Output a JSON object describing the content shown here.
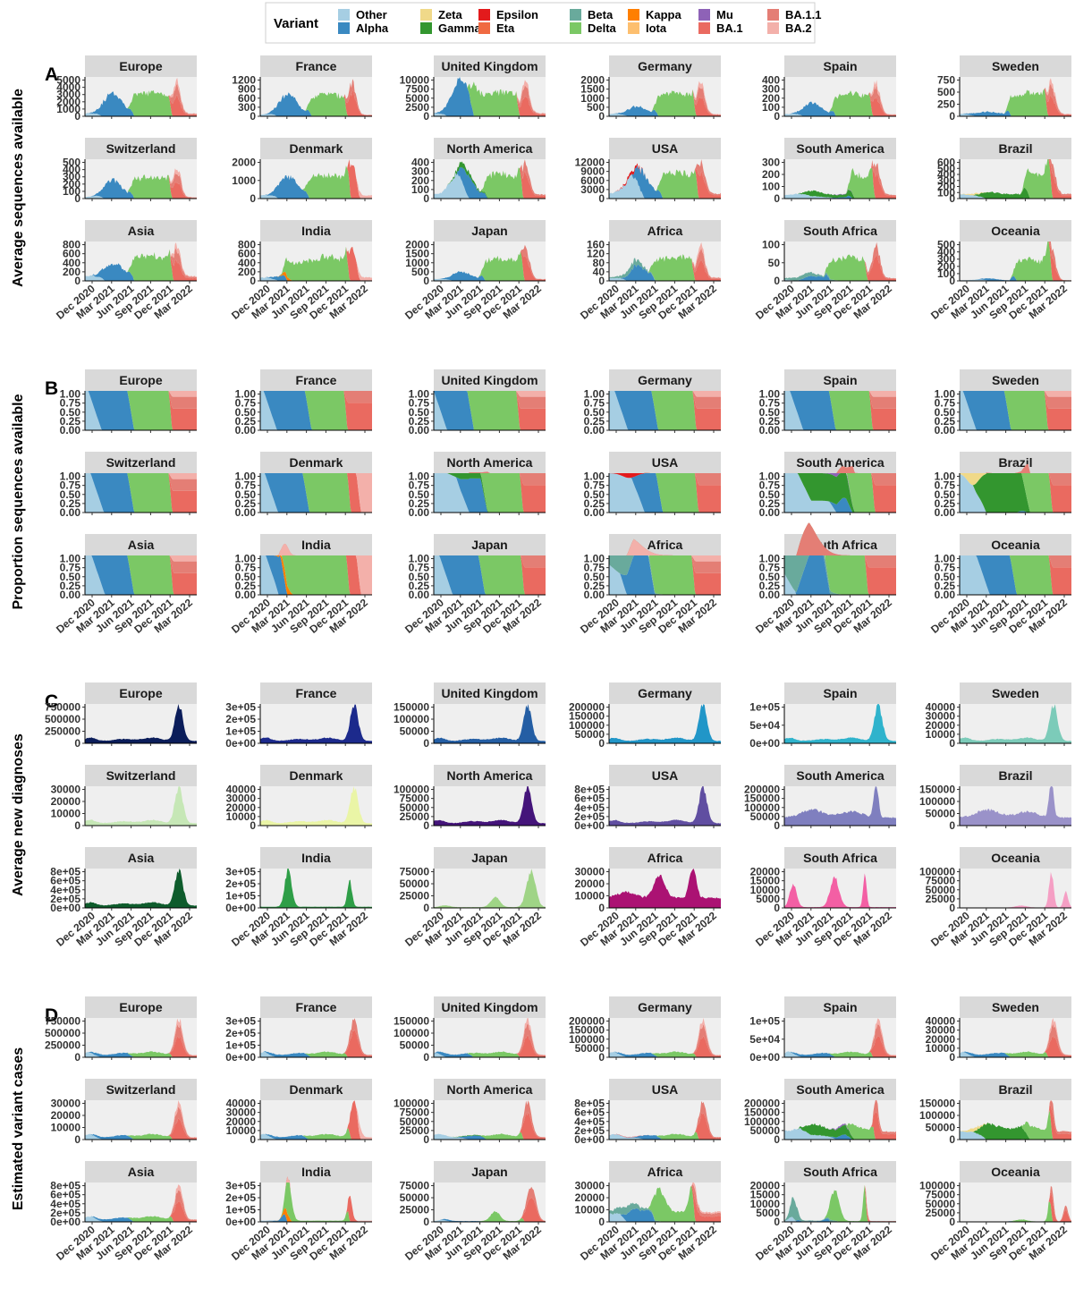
{
  "legend": {
    "title": "Variant",
    "items": [
      {
        "name": "Other",
        "color": "#a6cee3"
      },
      {
        "name": "Alpha",
        "color": "#3a89c1"
      },
      {
        "name": "Zeta",
        "color": "#f0d989"
      },
      {
        "name": "Gamma",
        "color": "#33962f"
      },
      {
        "name": "Epsilon",
        "color": "#e31a1c"
      },
      {
        "name": "Eta",
        "color": "#f06a42"
      },
      {
        "name": "Beta",
        "color": "#69aa9c"
      },
      {
        "name": "Delta",
        "color": "#7bc865"
      },
      {
        "name": "Kappa",
        "color": "#ff7f00"
      },
      {
        "name": "Iota",
        "color": "#fdbf6f"
      },
      {
        "name": "Mu",
        "color": "#8e62b7"
      },
      {
        "name": "BA.1",
        "color": "#ea6a60"
      },
      {
        "name": "BA.1.1",
        "color": "#e47e75"
      },
      {
        "name": "BA.2",
        "color": "#f3b0aa"
      }
    ]
  },
  "colors": {
    "strip": "#d9d9d9",
    "panel_bg": "#efefef",
    "axis": "#000000"
  },
  "x_ticks": [
    "Dec 2020",
    "Mar 2021",
    "Jun 2021",
    "Sep 2021",
    "Dec 2021",
    "Mar 2022"
  ],
  "regions": [
    "Europe",
    "France",
    "United Kingdom",
    "Germany",
    "Spain",
    "Sweden",
    "Switzerland",
    "Denmark",
    "North America",
    "USA",
    "South America",
    "Brazil",
    "Asia",
    "India",
    "Japan",
    "Africa",
    "South Africa",
    "Oceania"
  ],
  "chart_data": [
    {
      "label": "A",
      "ylabel": "Average sequences available",
      "type": "area",
      "mode": "variant",
      "yticks": [
        [
          "0",
          "1000",
          "2000",
          "3000",
          "4000",
          "5000"
        ],
        [
          "0",
          "300",
          "600",
          "900",
          "1200"
        ],
        [
          "0",
          "2500",
          "5000",
          "7500",
          "10000"
        ],
        [
          "0",
          "500",
          "1000",
          "1500",
          "2000"
        ],
        [
          "0",
          "100",
          "200",
          "300",
          "400"
        ],
        [
          "0",
          "250",
          "500",
          "750"
        ],
        [
          "0",
          "100",
          "200",
          "300",
          "400",
          "500"
        ],
        [
          "0",
          "1000",
          "2000"
        ],
        [
          "0",
          "100",
          "200",
          "300",
          "400"
        ],
        [
          "0",
          "3000",
          "6000",
          "9000",
          "12000"
        ],
        [
          "0",
          "100",
          "200",
          "300"
        ],
        [
          "0",
          "100",
          "200",
          "300",
          "400",
          "500",
          "600"
        ],
        [
          "0",
          "200",
          "400",
          "600",
          "800"
        ],
        [
          "0",
          "200",
          "400",
          "600",
          "800"
        ],
        [
          "0",
          "500",
          "1000",
          "1500",
          "2000"
        ],
        [
          "0",
          "40",
          "80",
          "120",
          "160"
        ],
        [
          "0",
          "50",
          "100"
        ],
        [
          "0",
          "100",
          "200",
          "300",
          "400",
          "500"
        ]
      ]
    },
    {
      "label": "B",
      "ylabel": "Proportion sequences available",
      "type": "area",
      "mode": "proportion",
      "yticks": [
        "0.00",
        "0.25",
        "0.50",
        "0.75",
        "1.00"
      ]
    },
    {
      "label": "C",
      "ylabel": "Average new diagnoses",
      "type": "area",
      "mode": "single",
      "fills": [
        "#0b1d5a",
        "#1c2a8c",
        "#245ea4",
        "#2196c8",
        "#2fb3cc",
        "#7ccbb9",
        "#c6e7b6",
        "#eaf5a6",
        "#44147a",
        "#604ea1",
        "#7f7fbf",
        "#9a92c9",
        "#0e5c2c",
        "#2e9e47",
        "#9fd486",
        "#ab1273",
        "#f35fa4",
        "#f59fc4"
      ],
      "yticks": [
        [
          "0",
          "250000",
          "500000",
          "750000"
        ],
        [
          "0e+00",
          "1e+05",
          "2e+05",
          "3e+05"
        ],
        [
          "0",
          "50000",
          "100000",
          "150000"
        ],
        [
          "0",
          "50000",
          "100000",
          "150000",
          "200000"
        ],
        [
          "0e+00",
          "5e+04",
          "1e+05"
        ],
        [
          "0",
          "10000",
          "20000",
          "30000",
          "40000"
        ],
        [
          "0",
          "10000",
          "20000",
          "30000"
        ],
        [
          "0",
          "10000",
          "20000",
          "30000",
          "40000"
        ],
        [
          "0",
          "25000",
          "50000",
          "75000",
          "100000"
        ],
        [
          "0e+00",
          "2e+05",
          "4e+05",
          "6e+05",
          "8e+05"
        ],
        [
          "0",
          "50000",
          "100000",
          "150000",
          "200000"
        ],
        [
          "0",
          "50000",
          "100000",
          "150000"
        ],
        [
          "0e+00",
          "2e+05",
          "4e+05",
          "6e+05",
          "8e+05"
        ],
        [
          "0e+00",
          "1e+05",
          "2e+05",
          "3e+05"
        ],
        [
          "0",
          "25000",
          "50000",
          "75000"
        ],
        [
          "0",
          "10000",
          "20000",
          "30000"
        ],
        [
          "0",
          "5000",
          "10000",
          "15000",
          "20000"
        ],
        [
          "0",
          "25000",
          "50000",
          "75000",
          "100000"
        ]
      ]
    },
    {
      "label": "D",
      "ylabel": "Estimated variant cases",
      "type": "area",
      "mode": "cases",
      "yticks": [
        [
          "0",
          "250000",
          "500000",
          "750000"
        ],
        [
          "0e+00",
          "1e+05",
          "2e+05",
          "3e+05"
        ],
        [
          "0",
          "50000",
          "100000",
          "150000"
        ],
        [
          "0",
          "50000",
          "100000",
          "150000",
          "200000"
        ],
        [
          "0e+00",
          "5e+04",
          "1e+05"
        ],
        [
          "0",
          "10000",
          "20000",
          "30000",
          "40000"
        ],
        [
          "0",
          "10000",
          "20000",
          "30000"
        ],
        [
          "0",
          "10000",
          "20000",
          "30000",
          "40000"
        ],
        [
          "0",
          "25000",
          "50000",
          "75000",
          "100000"
        ],
        [
          "0e+00",
          "2e+05",
          "4e+05",
          "6e+05",
          "8e+05"
        ],
        [
          "0",
          "50000",
          "100000",
          "150000",
          "200000"
        ],
        [
          "0",
          "50000",
          "100000",
          "150000"
        ],
        [
          "0e+00",
          "2e+05",
          "4e+05",
          "6e+05",
          "8e+05"
        ],
        [
          "0e+00",
          "1e+05",
          "2e+05",
          "3e+05"
        ],
        [
          "0",
          "25000",
          "50000",
          "75000"
        ],
        [
          "0",
          "10000",
          "20000",
          "30000"
        ],
        [
          "0",
          "5000",
          "10000",
          "15000",
          "20000"
        ],
        [
          "0",
          "25000",
          "50000",
          "75000",
          "100000"
        ]
      ]
    }
  ]
}
